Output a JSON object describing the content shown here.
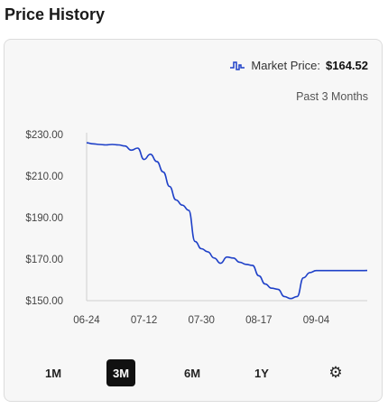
{
  "header": {
    "title": "Price History"
  },
  "market": {
    "label": "Market Price:",
    "value": "$164.52",
    "icon": "pulse-icon",
    "accent": "#1e40c8"
  },
  "period": {
    "label": "Past 3 Months"
  },
  "range_buttons": [
    {
      "label": "1M",
      "active": false
    },
    {
      "label": "3M",
      "active": true
    },
    {
      "label": "6M",
      "active": false
    },
    {
      "label": "1Y",
      "active": false
    }
  ],
  "settings": {
    "icon": "gear-icon",
    "glyph": "⚙"
  },
  "chart_data": {
    "type": "line",
    "x_tick_labels": [
      "06-24",
      "07-12",
      "07-30",
      "08-17",
      "09-04"
    ],
    "y_tick_labels": [
      "$230.00",
      "$210.00",
      "$190.00",
      "$170.00",
      "$150.00"
    ],
    "ylim": [
      150,
      230
    ],
    "grid": false,
    "series": [
      {
        "color": "#1e40c8",
        "x": [
          "06-24",
          "06-26",
          "06-28",
          "06-30",
          "07-02",
          "07-04",
          "07-06",
          "07-08",
          "07-10",
          "07-12",
          "07-14",
          "07-16",
          "07-18",
          "07-20",
          "07-22",
          "07-24",
          "07-26",
          "07-28",
          "07-30",
          "08-01",
          "08-03",
          "08-05",
          "08-07",
          "08-09",
          "08-11",
          "08-13",
          "08-15",
          "08-17",
          "08-19",
          "08-21",
          "08-23",
          "08-25",
          "08-27",
          "08-29",
          "08-31",
          "09-02",
          "09-04",
          "09-06",
          "09-08",
          "09-10",
          "09-12",
          "09-14",
          "09-16",
          "09-18",
          "09-20"
        ],
        "values": [
          226,
          225.5,
          225.2,
          225,
          225.2,
          225,
          224.5,
          222.5,
          223.5,
          218,
          220.5,
          217,
          212,
          205,
          198.5,
          196,
          193.5,
          178.5,
          175,
          173.5,
          170.5,
          168,
          171,
          170.5,
          168.5,
          167.5,
          167,
          162,
          158,
          156,
          155.5,
          152,
          151,
          152,
          161,
          163.5,
          164.5,
          164.5,
          164.5,
          164.5,
          164.5,
          164.5,
          164.5,
          164.5,
          164.52
        ]
      }
    ]
  }
}
